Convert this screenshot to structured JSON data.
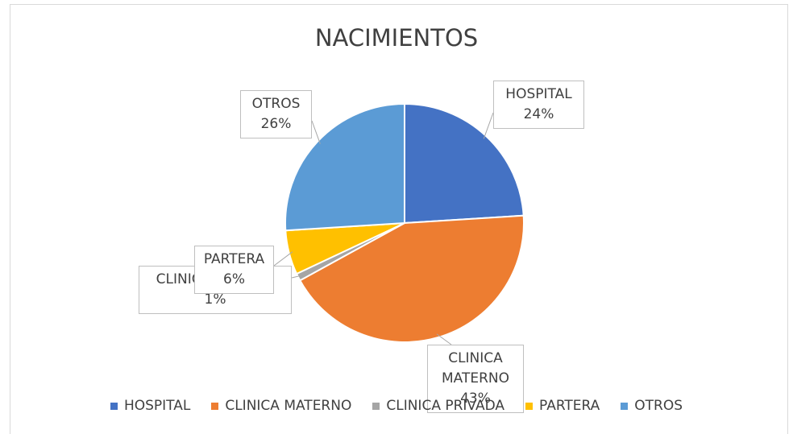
{
  "chart_data": {
    "type": "pie",
    "title": "NACIMIENTOS",
    "categories": [
      "HOSPITAL",
      "CLINICA MATERNO",
      "CLINICA PRIVADA",
      "PARTERA",
      "OTROS"
    ],
    "values": [
      24,
      43,
      1,
      6,
      26
    ],
    "value_labels": [
      "24%",
      "43%",
      "1%",
      "6%",
      "26%"
    ],
    "colors": [
      "#4472c4",
      "#ed7d31",
      "#a5a5a5",
      "#ffc000",
      "#5b9bd5"
    ],
    "legend": "bottom"
  }
}
